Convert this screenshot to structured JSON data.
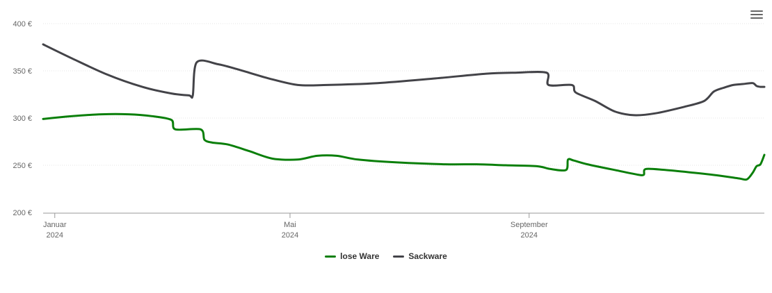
{
  "menu": {
    "icon": "hamburger-menu-icon"
  },
  "chart_data": {
    "type": "line",
    "currency": "€",
    "ylim": [
      200,
      400
    ],
    "y_ticks": [
      200,
      250,
      300,
      350,
      400
    ],
    "y_tick_labels": [
      "200 €",
      "250 €",
      "300 €",
      "350 €",
      "400 €"
    ],
    "x_ticks": [
      {
        "date": "2024-01-01",
        "label1": "Januar",
        "label2": "2024"
      },
      {
        "date": "2024-05-01",
        "label1": "Mai",
        "label2": "2024"
      },
      {
        "date": "2024-09-01",
        "label1": "September",
        "label2": "2024"
      }
    ],
    "xlim": [
      "2023-12-26",
      "2024-12-31"
    ],
    "grid": true,
    "legend_position": "bottom-center",
    "series": [
      {
        "name": "lose Ware",
        "color": "#0a7f0a",
        "points": [
          [
            "2023-12-26",
            299
          ],
          [
            "2024-01-10",
            302
          ],
          [
            "2024-01-25",
            304
          ],
          [
            "2024-02-08",
            304
          ],
          [
            "2024-02-20",
            302
          ],
          [
            "2024-03-01",
            298
          ],
          [
            "2024-03-03",
            288
          ],
          [
            "2024-03-16",
            288
          ],
          [
            "2024-03-18",
            277
          ],
          [
            "2024-03-22",
            274
          ],
          [
            "2024-03-30",
            272
          ],
          [
            "2024-04-10",
            265
          ],
          [
            "2024-04-22",
            257
          ],
          [
            "2024-05-05",
            256
          ],
          [
            "2024-05-15",
            260
          ],
          [
            "2024-05-25",
            260
          ],
          [
            "2024-06-05",
            256
          ],
          [
            "2024-06-25",
            253
          ],
          [
            "2024-07-20",
            251
          ],
          [
            "2024-08-05",
            251
          ],
          [
            "2024-08-20",
            250
          ],
          [
            "2024-09-05",
            249
          ],
          [
            "2024-09-12",
            246
          ],
          [
            "2024-09-20",
            245
          ],
          [
            "2024-09-21",
            256
          ],
          [
            "2024-09-24",
            255
          ],
          [
            "2024-10-01",
            251
          ],
          [
            "2024-10-15",
            245
          ],
          [
            "2024-10-27",
            240
          ],
          [
            "2024-10-30",
            240
          ],
          [
            "2024-10-31",
            246
          ],
          [
            "2024-11-10",
            245
          ],
          [
            "2024-11-25",
            242
          ],
          [
            "2024-12-08",
            239
          ],
          [
            "2024-12-18",
            236
          ],
          [
            "2024-12-22",
            235
          ],
          [
            "2024-12-25",
            242
          ],
          [
            "2024-12-27",
            249
          ],
          [
            "2024-12-29",
            251
          ],
          [
            "2024-12-31",
            261
          ]
        ]
      },
      {
        "name": "Sackware",
        "color": "#434348",
        "points": [
          [
            "2023-12-26",
            378
          ],
          [
            "2024-01-10",
            363
          ],
          [
            "2024-01-28",
            346
          ],
          [
            "2024-02-15",
            333
          ],
          [
            "2024-03-01",
            326
          ],
          [
            "2024-03-10",
            324
          ],
          [
            "2024-03-12",
            324
          ],
          [
            "2024-03-14",
            359
          ],
          [
            "2024-03-25",
            357
          ],
          [
            "2024-04-05",
            351
          ],
          [
            "2024-04-20",
            342
          ],
          [
            "2024-05-05",
            335
          ],
          [
            "2024-05-20",
            335
          ],
          [
            "2024-06-15",
            337
          ],
          [
            "2024-07-15",
            342
          ],
          [
            "2024-08-10",
            347
          ],
          [
            "2024-08-25",
            348
          ],
          [
            "2024-09-10",
            348
          ],
          [
            "2024-09-11",
            335
          ],
          [
            "2024-09-23",
            335
          ],
          [
            "2024-09-25",
            327
          ],
          [
            "2024-10-05",
            318
          ],
          [
            "2024-10-15",
            307
          ],
          [
            "2024-10-25",
            303
          ],
          [
            "2024-11-05",
            305
          ],
          [
            "2024-11-20",
            312
          ],
          [
            "2024-11-30",
            318
          ],
          [
            "2024-12-05",
            328
          ],
          [
            "2024-12-10",
            332
          ],
          [
            "2024-12-15",
            335
          ],
          [
            "2024-12-20",
            336
          ],
          [
            "2024-12-25",
            337
          ],
          [
            "2024-12-27",
            334
          ],
          [
            "2024-12-29",
            333
          ],
          [
            "2024-12-31",
            333
          ]
        ]
      }
    ]
  }
}
